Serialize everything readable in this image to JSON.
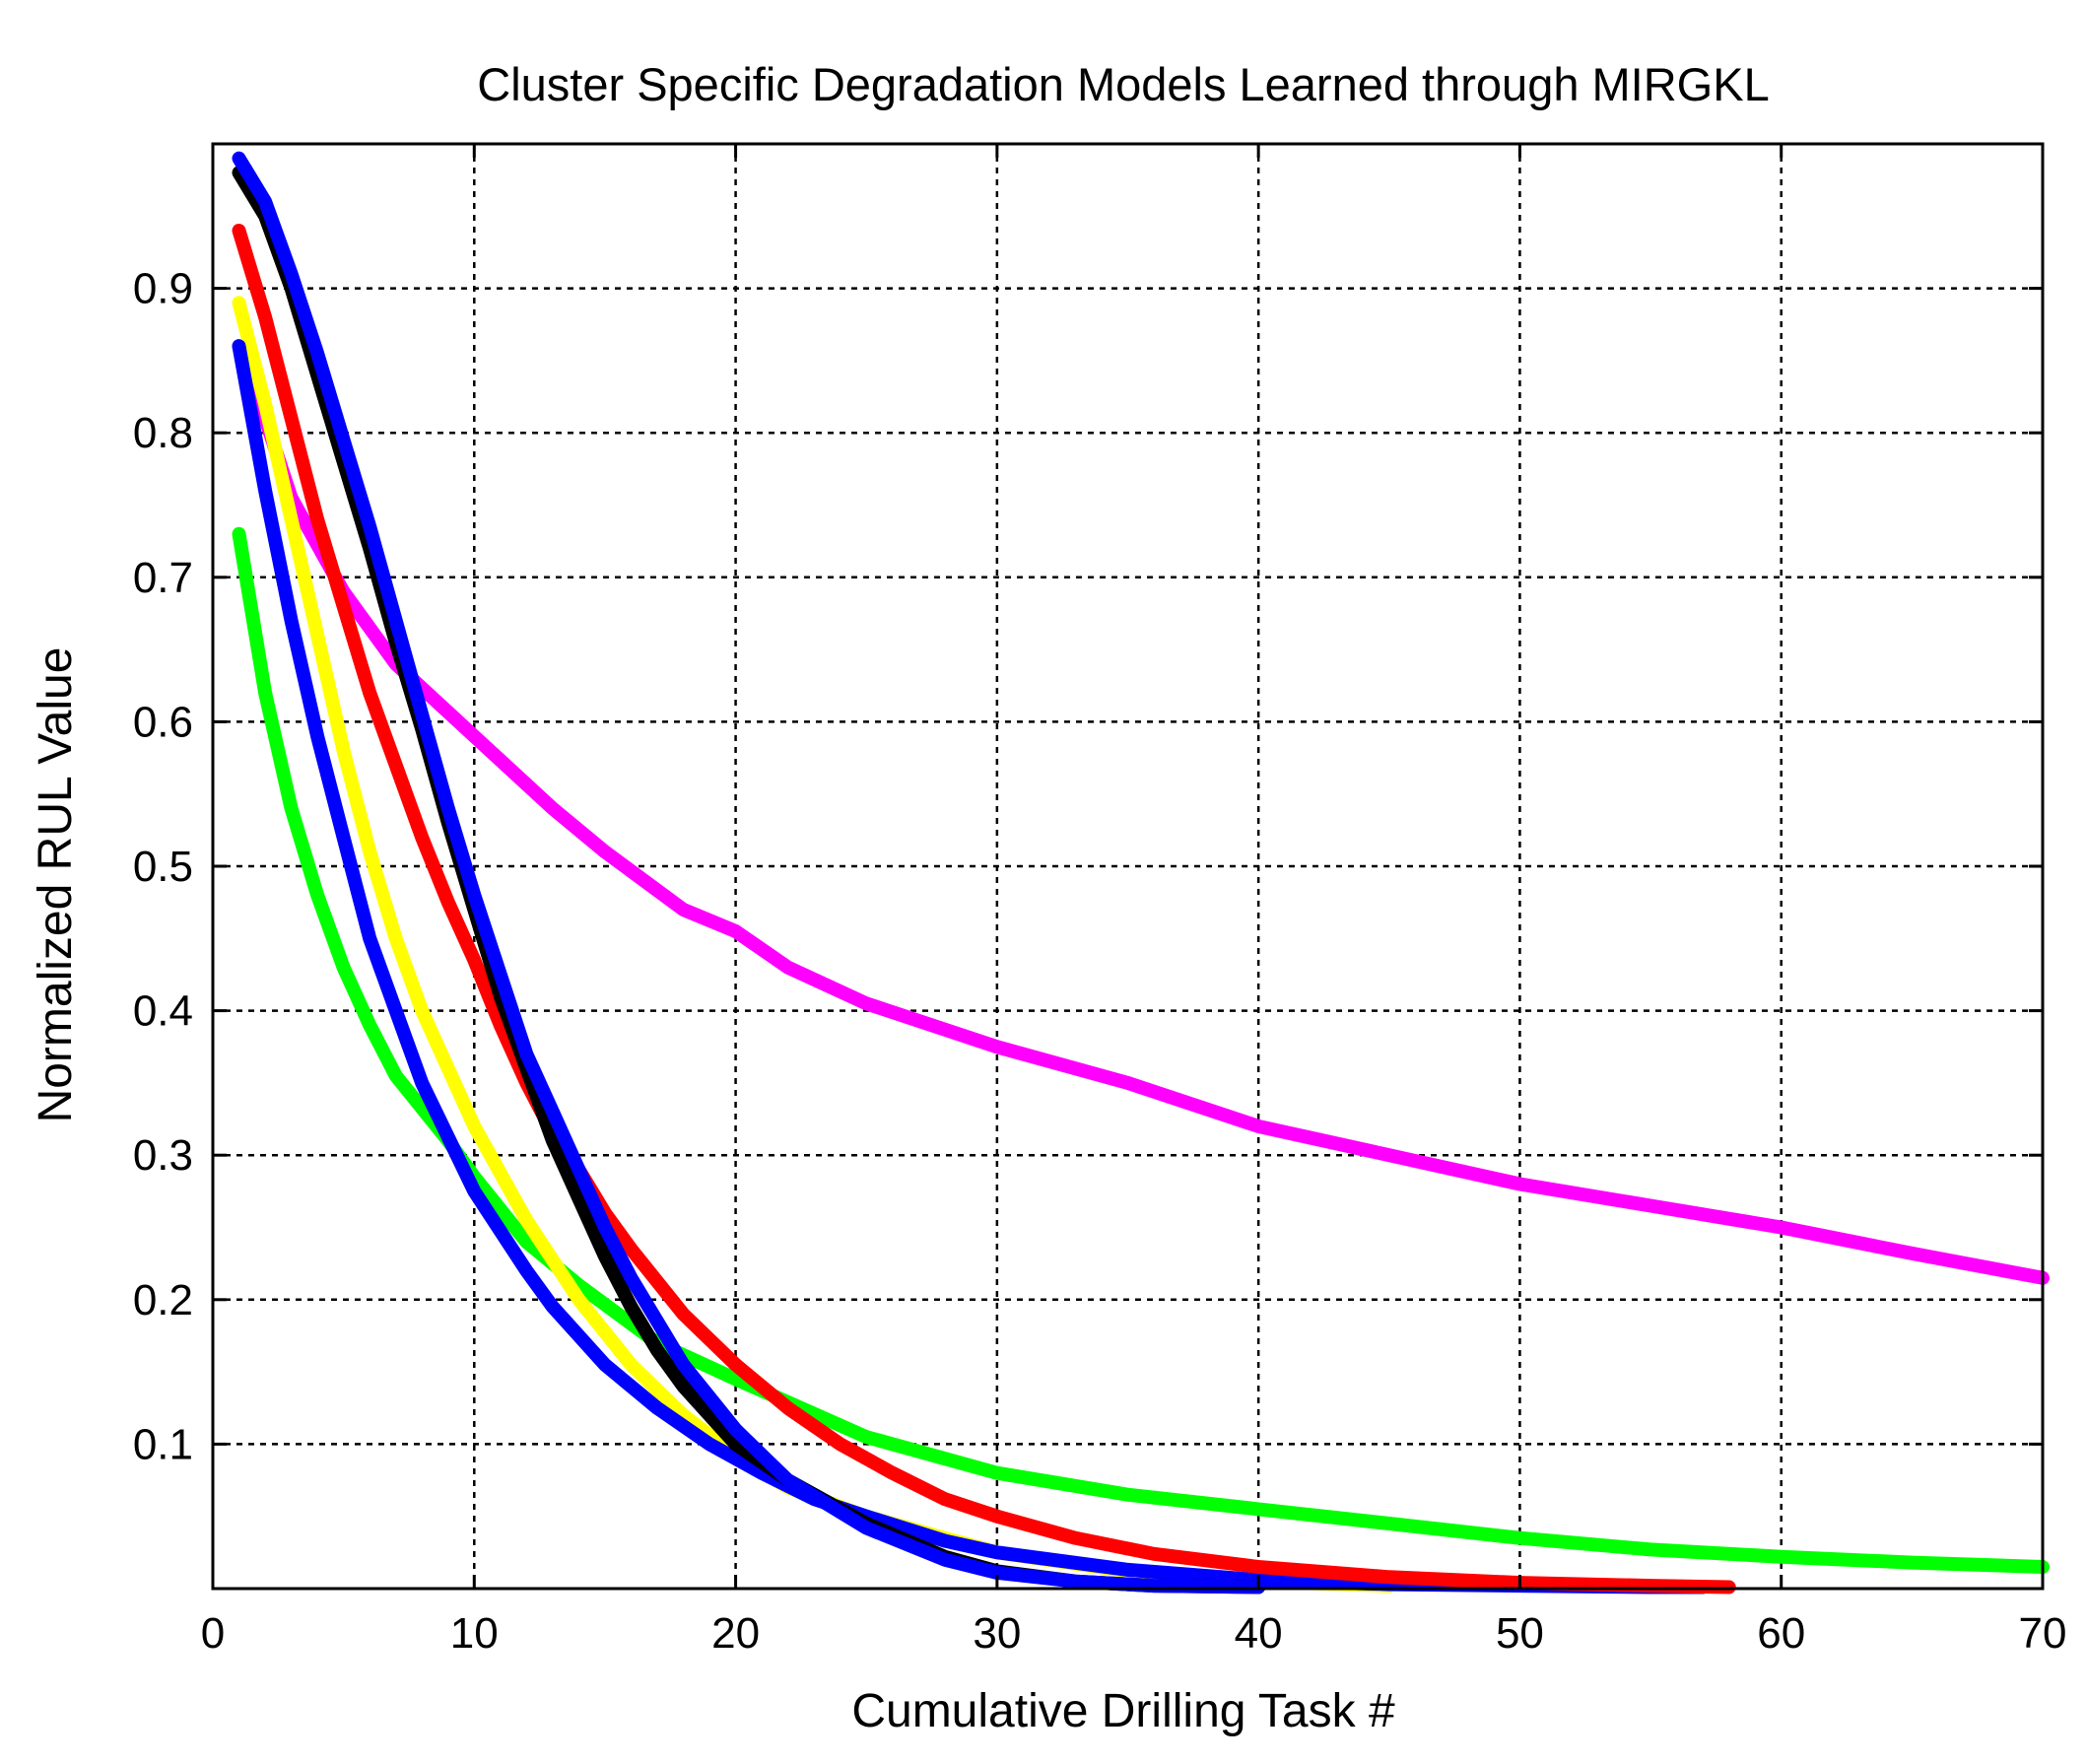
{
  "chart_data": {
    "type": "line",
    "title": "Cluster Specific Degradation Models Learned through MIRGKL",
    "xlabel": "Cumulative Drilling Task #",
    "ylabel": "Normalized RUL Value",
    "xlim": [
      0,
      70
    ],
    "ylim": [
      0,
      1
    ],
    "grid": true,
    "x_ticks": [
      0,
      10,
      20,
      30,
      40,
      50,
      60,
      70
    ],
    "y_ticks": [
      0.1,
      0.2,
      0.3,
      0.4,
      0.5,
      0.6,
      0.7,
      0.8,
      0.9
    ],
    "series": [
      {
        "name": "magenta",
        "color": "#ff00ff",
        "x": [
          1,
          2,
          3,
          5,
          7,
          10,
          13,
          15,
          18,
          20,
          22,
          25,
          30,
          35,
          40,
          45,
          50,
          55,
          60,
          65,
          70
        ],
        "y": [
          0.86,
          0.81,
          0.755,
          0.69,
          0.64,
          0.59,
          0.54,
          0.51,
          0.47,
          0.455,
          0.43,
          0.405,
          0.375,
          0.35,
          0.32,
          0.3,
          0.28,
          0.265,
          0.25,
          0.232,
          0.215
        ]
      },
      {
        "name": "green",
        "color": "#00ff00",
        "x": [
          1,
          2,
          3,
          4,
          5,
          6,
          7,
          9,
          10,
          12,
          14,
          17,
          20,
          25,
          30,
          35,
          40,
          45,
          50,
          55,
          60,
          65,
          70
        ],
        "y": [
          0.73,
          0.62,
          0.54,
          0.48,
          0.43,
          0.39,
          0.355,
          0.31,
          0.285,
          0.24,
          0.21,
          0.17,
          0.145,
          0.105,
          0.08,
          0.065,
          0.055,
          0.045,
          0.035,
          0.027,
          0.022,
          0.018,
          0.015
        ]
      },
      {
        "name": "yellow",
        "color": "#ffff00",
        "x": [
          1,
          2,
          3,
          4,
          5,
          6,
          7,
          8,
          10,
          12,
          14,
          16,
          18,
          20,
          22,
          25,
          28,
          30,
          35,
          40,
          45
        ],
        "y": [
          0.89,
          0.82,
          0.74,
          0.66,
          0.58,
          0.51,
          0.45,
          0.4,
          0.32,
          0.255,
          0.2,
          0.155,
          0.12,
          0.092,
          0.07,
          0.05,
          0.035,
          0.025,
          0.012,
          0.005,
          0.002
        ]
      },
      {
        "name": "blue",
        "color": "#0000ff",
        "x": [
          1,
          2,
          3,
          4,
          5,
          6,
          7,
          8,
          10,
          12,
          13,
          15,
          17,
          19,
          21,
          23,
          25,
          28,
          30,
          35,
          40,
          45,
          50,
          55,
          57
        ],
        "y": [
          0.86,
          0.76,
          0.67,
          0.59,
          0.52,
          0.45,
          0.4,
          0.35,
          0.275,
          0.22,
          0.195,
          0.155,
          0.125,
          0.1,
          0.08,
          0.062,
          0.05,
          0.033,
          0.025,
          0.013,
          0.006,
          0.003,
          0.002,
          0.001,
          0.001
        ]
      },
      {
        "name": "red",
        "color": "#ff0000",
        "x": [
          1,
          2,
          3,
          4,
          5,
          6,
          7,
          8,
          9,
          10,
          11,
          12,
          13,
          14,
          15,
          16,
          18,
          20,
          22,
          24,
          26,
          28,
          30,
          33,
          36,
          40,
          45,
          50,
          55,
          58
        ],
        "y": [
          0.94,
          0.88,
          0.81,
          0.74,
          0.68,
          0.62,
          0.57,
          0.52,
          0.475,
          0.435,
          0.39,
          0.35,
          0.315,
          0.29,
          0.26,
          0.235,
          0.19,
          0.155,
          0.125,
          0.1,
          0.08,
          0.062,
          0.05,
          0.035,
          0.024,
          0.015,
          0.008,
          0.004,
          0.002,
          0.001
        ]
      },
      {
        "name": "black",
        "color": "#000000",
        "x": [
          1,
          2,
          3,
          4,
          5,
          6,
          7,
          8,
          9,
          10,
          11,
          12,
          13,
          14,
          15,
          16,
          17,
          18,
          20,
          22,
          25,
          28,
          30,
          33,
          36,
          40
        ],
        "y": [
          0.98,
          0.95,
          0.9,
          0.84,
          0.78,
          0.72,
          0.655,
          0.595,
          0.53,
          0.47,
          0.41,
          0.36,
          0.31,
          0.27,
          0.23,
          0.195,
          0.165,
          0.14,
          0.1,
          0.075,
          0.045,
          0.022,
          0.012,
          0.005,
          0.002,
          0.001
        ]
      },
      {
        "name": "blue-2",
        "color": "#0000ff",
        "x": [
          1,
          2,
          3,
          4,
          5,
          6,
          7,
          8,
          9,
          10,
          11,
          12,
          13,
          14,
          15,
          16,
          18,
          20,
          22,
          25,
          28,
          30,
          33,
          36,
          40
        ],
        "y": [
          0.99,
          0.96,
          0.91,
          0.855,
          0.795,
          0.735,
          0.67,
          0.605,
          0.54,
          0.48,
          0.425,
          0.37,
          0.33,
          0.29,
          0.25,
          0.215,
          0.155,
          0.11,
          0.075,
          0.042,
          0.02,
          0.011,
          0.005,
          0.002,
          0.001
        ]
      }
    ]
  }
}
